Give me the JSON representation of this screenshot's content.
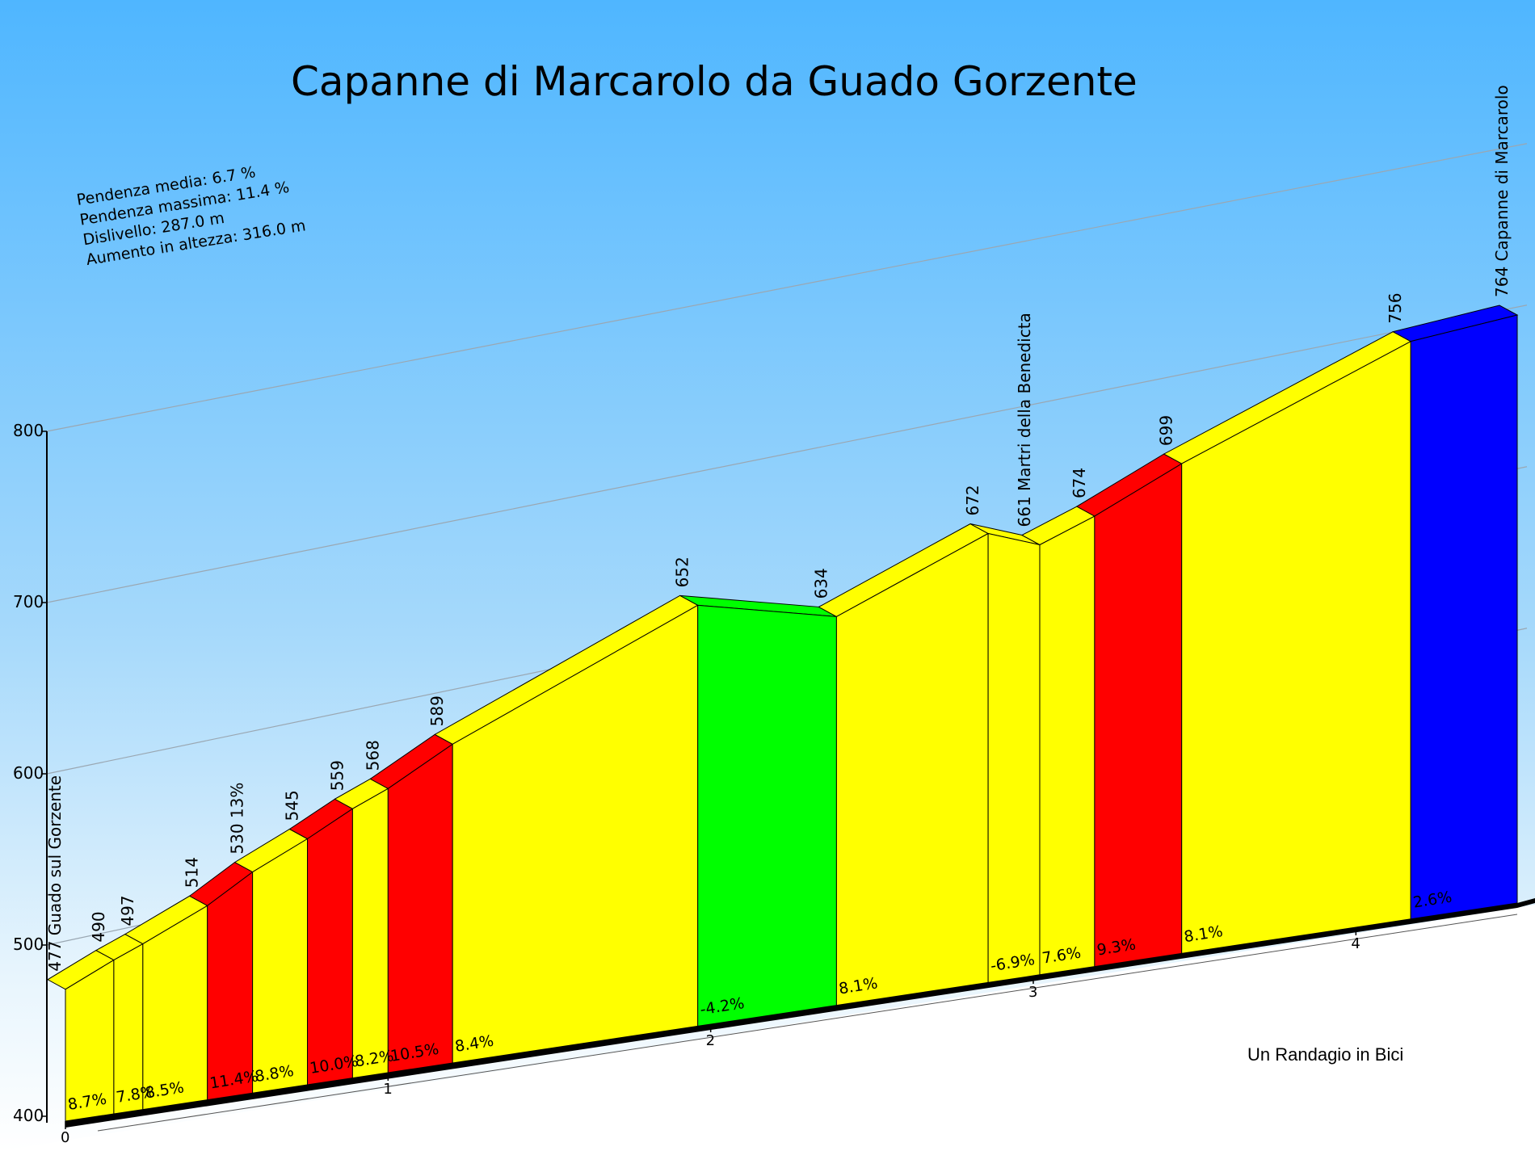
{
  "chart_data": {
    "type": "area",
    "title": "Capanne di Marcarolo da Guado Gorzente",
    "xlabel": "",
    "ylabel": "",
    "ylim": [
      400,
      800
    ],
    "xlim": [
      0,
      5.1
    ],
    "grid": true,
    "y_ticks": [
      "400",
      "500",
      "600",
      "700",
      "800"
    ],
    "x_ticks": [
      "0",
      "1",
      "2",
      "3",
      "4"
    ],
    "stats": [
      "Pendenza media: 6.7 %",
      "Pendenza massima: 11.4 %",
      "Dislivello: 287.0 m",
      "Aumento in altezza: 316.0 m"
    ],
    "credit": "Un Randagio in Bici",
    "points": [
      {
        "km": 0.0,
        "elev": 477,
        "label": "477 Guado sul Gorzente"
      },
      {
        "km": 0.15,
        "elev": 490,
        "label": "490"
      },
      {
        "km": 0.24,
        "elev": 497,
        "label": "497"
      },
      {
        "km": 0.44,
        "elev": 514,
        "label": "514"
      },
      {
        "km": 0.58,
        "elev": 530,
        "label": "530 13%"
      },
      {
        "km": 0.75,
        "elev": 545,
        "label": "545"
      },
      {
        "km": 0.89,
        "elev": 559,
        "label": "559"
      },
      {
        "km": 1.0,
        "elev": 568,
        "label": "568"
      },
      {
        "km": 1.2,
        "elev": 589,
        "label": "589"
      },
      {
        "km": 1.96,
        "elev": 652,
        "label": "652"
      },
      {
        "km": 2.39,
        "elev": 634,
        "label": "634"
      },
      {
        "km": 2.86,
        "elev": 672,
        "label": "672"
      },
      {
        "km": 3.02,
        "elev": 661,
        "label": "661 Martri della Benedicta"
      },
      {
        "km": 3.19,
        "elev": 674,
        "label": "674"
      },
      {
        "km": 3.46,
        "elev": 699,
        "label": "699"
      },
      {
        "km": 4.17,
        "elev": 756,
        "label": "756"
      },
      {
        "km": 4.5,
        "elev": 764,
        "label": "764 Capanne di Marcarolo"
      }
    ],
    "segments": [
      {
        "gradient": "8.7%",
        "color": "#ffff00"
      },
      {
        "gradient": "7.8%",
        "color": "#ffff00"
      },
      {
        "gradient": "8.5%",
        "color": "#ffff00"
      },
      {
        "gradient": "11.4%",
        "color": "#ff0000"
      },
      {
        "gradient": "8.8%",
        "color": "#ffff00"
      },
      {
        "gradient": "10.0%",
        "color": "#ff0000"
      },
      {
        "gradient": "8.2%",
        "color": "#ffff00"
      },
      {
        "gradient": "10.5%",
        "color": "#ff0000"
      },
      {
        "gradient": "8.4%",
        "color": "#ffff00"
      },
      {
        "gradient": "-4.2%",
        "color": "#00ff00"
      },
      {
        "gradient": "8.1%",
        "color": "#ffff00"
      },
      {
        "gradient": "-6.9%",
        "color": "#ffff00"
      },
      {
        "gradient": "7.6%",
        "color": "#ffff00"
      },
      {
        "gradient": "9.3%",
        "color": "#ff0000"
      },
      {
        "gradient": "8.1%",
        "color": "#ffff00"
      },
      {
        "gradient": "2.6%",
        "color": "#0000ff"
      }
    ]
  }
}
